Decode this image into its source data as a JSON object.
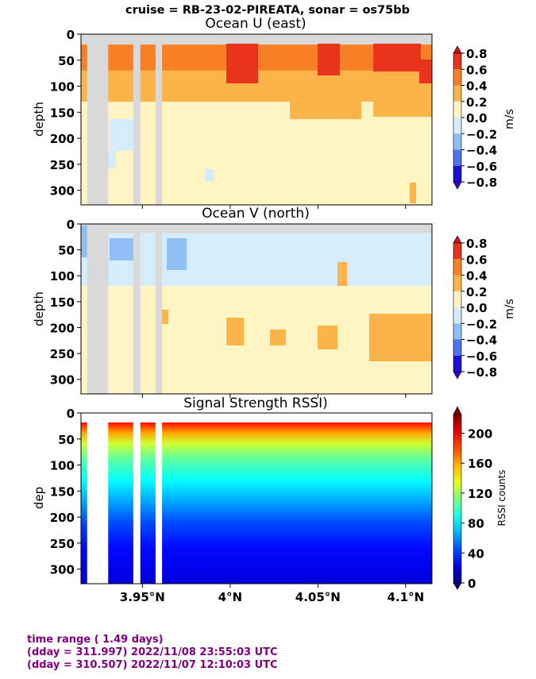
{
  "suptitle": "cruise = RB-23-02-PIREATA,  sonar = os75bb",
  "x_ticks": [
    "3.95°N",
    "4°N",
    "4.05°N",
    "4.1°N"
  ],
  "x_tick_values": [
    3.95,
    4.0,
    4.05,
    4.1
  ],
  "footer": {
    "line1": "time range ( 1.49 days)",
    "line2": "(dday = 311.997) 2022/11/08 23:55:03 UTC",
    "line3": "(dday = 310.507) 2022/11/07 12:10:03 UTC"
  },
  "colors": {
    "nodata": "#d9d9d9",
    "footer_text": "#800080"
  },
  "chart_data": [
    {
      "type": "heatmap",
      "title": "Ocean U (east)",
      "ylabel": "depth",
      "xlim": [
        3.915,
        4.115
      ],
      "ylim": [
        328,
        0
      ],
      "y_ticks": [
        0,
        50,
        100,
        150,
        200,
        250,
        300
      ],
      "colorbar": {
        "label": "m/s",
        "ticks": [
          "0.8",
          "0.6",
          "0.4",
          "0.2",
          "0.0",
          "−0.2",
          "−0.4",
          "−0.6",
          "−0.8"
        ],
        "levels": [
          0.8,
          0.6,
          0.4,
          0.2,
          0.0,
          -0.2,
          -0.4,
          -0.6,
          -0.8
        ],
        "colors": [
          "#c8141e",
          "#e8341c",
          "#f77f26",
          "#fbb44a",
          "#fff5c2",
          "#d5ecfb",
          "#90bff6",
          "#4c73f0",
          "#1a0fd8",
          "#3b00c0"
        ]
      },
      "gaps_lat": [
        [
          3.9185,
          3.9305
        ],
        [
          3.9448,
          3.9488
        ],
        [
          3.9575,
          3.9612
        ]
      ],
      "layers": [
        {
          "range": [
            0,
            20
          ],
          "value": "no data"
        },
        {
          "range": [
            20,
            70
          ],
          "value": 0.5
        },
        {
          "range": [
            70,
            130
          ],
          "value": 0.3
        },
        {
          "range": [
            130,
            328
          ],
          "value": 0.1
        }
      ]
    },
    {
      "type": "heatmap",
      "title": "Ocean V (north)",
      "ylabel": "depth",
      "xlim": [
        3.915,
        4.115
      ],
      "ylim": [
        328,
        0
      ],
      "y_ticks": [
        0,
        50,
        100,
        150,
        200,
        250,
        300
      ],
      "colorbar": {
        "label": "m/s",
        "ticks": [
          "0.8",
          "0.6",
          "0.4",
          "0.2",
          "0.0",
          "−0.2",
          "−0.4",
          "−0.6",
          "−0.8"
        ],
        "levels": [
          0.8,
          0.6,
          0.4,
          0.2,
          0.0,
          -0.2,
          -0.4,
          -0.6,
          -0.8
        ],
        "colors": [
          "#c8141e",
          "#e8341c",
          "#f77f26",
          "#fbb44a",
          "#fff5c2",
          "#d5ecfb",
          "#90bff6",
          "#4c73f0",
          "#1a0fd8",
          "#3b00c0"
        ]
      },
      "gaps_lat": [
        [
          3.9185,
          3.9305
        ],
        [
          3.9448,
          3.9488
        ],
        [
          3.9575,
          3.9612
        ]
      ],
      "layers": [
        {
          "range": [
            0,
            18
          ],
          "value": "no data"
        },
        {
          "range": [
            18,
            120
          ],
          "value": -0.1
        },
        {
          "range": [
            120,
            328
          ],
          "value": 0.1
        }
      ]
    },
    {
      "type": "heatmap",
      "title": "Signal Strength RSSI)",
      "ylabel": "dep",
      "xlim": [
        3.915,
        4.115
      ],
      "ylim": [
        328,
        0
      ],
      "y_ticks": [
        0,
        50,
        100,
        150,
        200,
        250,
        300
      ],
      "colorbar": {
        "label": "RSSI counts",
        "ticks": [
          "200",
          "160",
          "120",
          "80",
          "40",
          "0"
        ],
        "levels": [
          200,
          160,
          120,
          80,
          40,
          0
        ],
        "min": 0,
        "max": 225
      },
      "gaps_lat": [
        [
          3.9185,
          3.9305
        ],
        [
          3.9448,
          3.9488
        ],
        [
          3.9575,
          3.9612
        ]
      ],
      "depth_profile": [
        {
          "depth": 20,
          "value": 195
        },
        {
          "depth": 40,
          "value": 160
        },
        {
          "depth": 60,
          "value": 130
        },
        {
          "depth": 90,
          "value": 105
        },
        {
          "depth": 130,
          "value": 85
        },
        {
          "depth": 170,
          "value": 65
        },
        {
          "depth": 210,
          "value": 45
        },
        {
          "depth": 260,
          "value": 30
        },
        {
          "depth": 328,
          "value": 20
        }
      ]
    }
  ]
}
